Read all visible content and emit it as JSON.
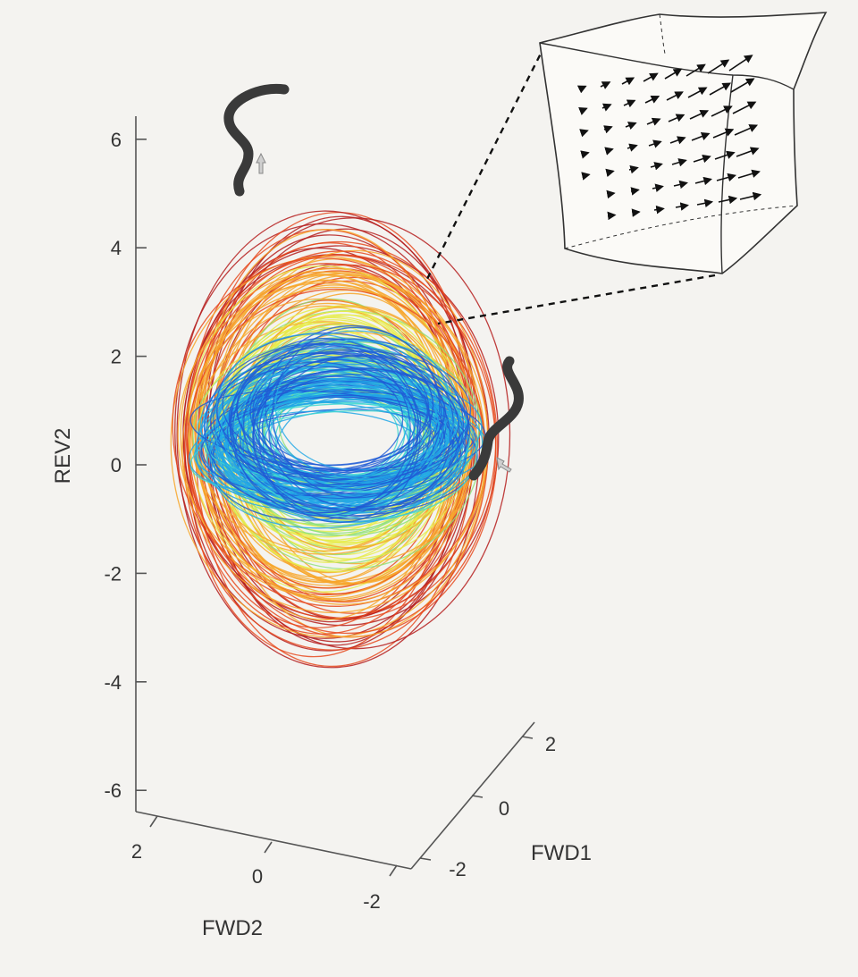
{
  "chart_data": {
    "type": "line",
    "subtype": "3d-trajectory",
    "title": "",
    "axes": {
      "vertical": {
        "label": "REV2",
        "ticks": [
          6,
          4,
          2,
          0,
          -2,
          -4,
          -6
        ],
        "range": [
          -6.5,
          6.5
        ]
      },
      "depth_left": {
        "label": "FWD2",
        "ticks": [
          2,
          0,
          -2
        ],
        "range": [
          -2.5,
          2.5
        ]
      },
      "depth_right": {
        "label": "FWD1",
        "ticks": [
          2,
          0,
          -2
        ],
        "range": [
          -2.5,
          2.5
        ]
      }
    },
    "grid": false,
    "colormap": [
      "#1f5bd6",
      "#22a7e6",
      "#3fd8d0",
      "#8fe07a",
      "#e6ec4a",
      "#f7a62a",
      "#e64a1e",
      "#b51d1d"
    ],
    "series": [
      {
        "amplitude": 0.9,
        "count": 60
      },
      {
        "amplitude": 1.5,
        "count": 40
      },
      {
        "amplitude": 2.5,
        "count": 28
      },
      {
        "amplitude": 3.5,
        "count": 24
      },
      {
        "amplitude": 4.5,
        "count": 22
      },
      {
        "amplitude": 5.5,
        "count": 18
      },
      {
        "amplitude": 6.2,
        "count": 10
      }
    ],
    "inset": {
      "description_icon": "vector-field-arrows",
      "connected_to_region": "REV2 approx 3"
    },
    "decorations": [
      "worm-icon-reverse",
      "worm-icon-forward"
    ]
  }
}
